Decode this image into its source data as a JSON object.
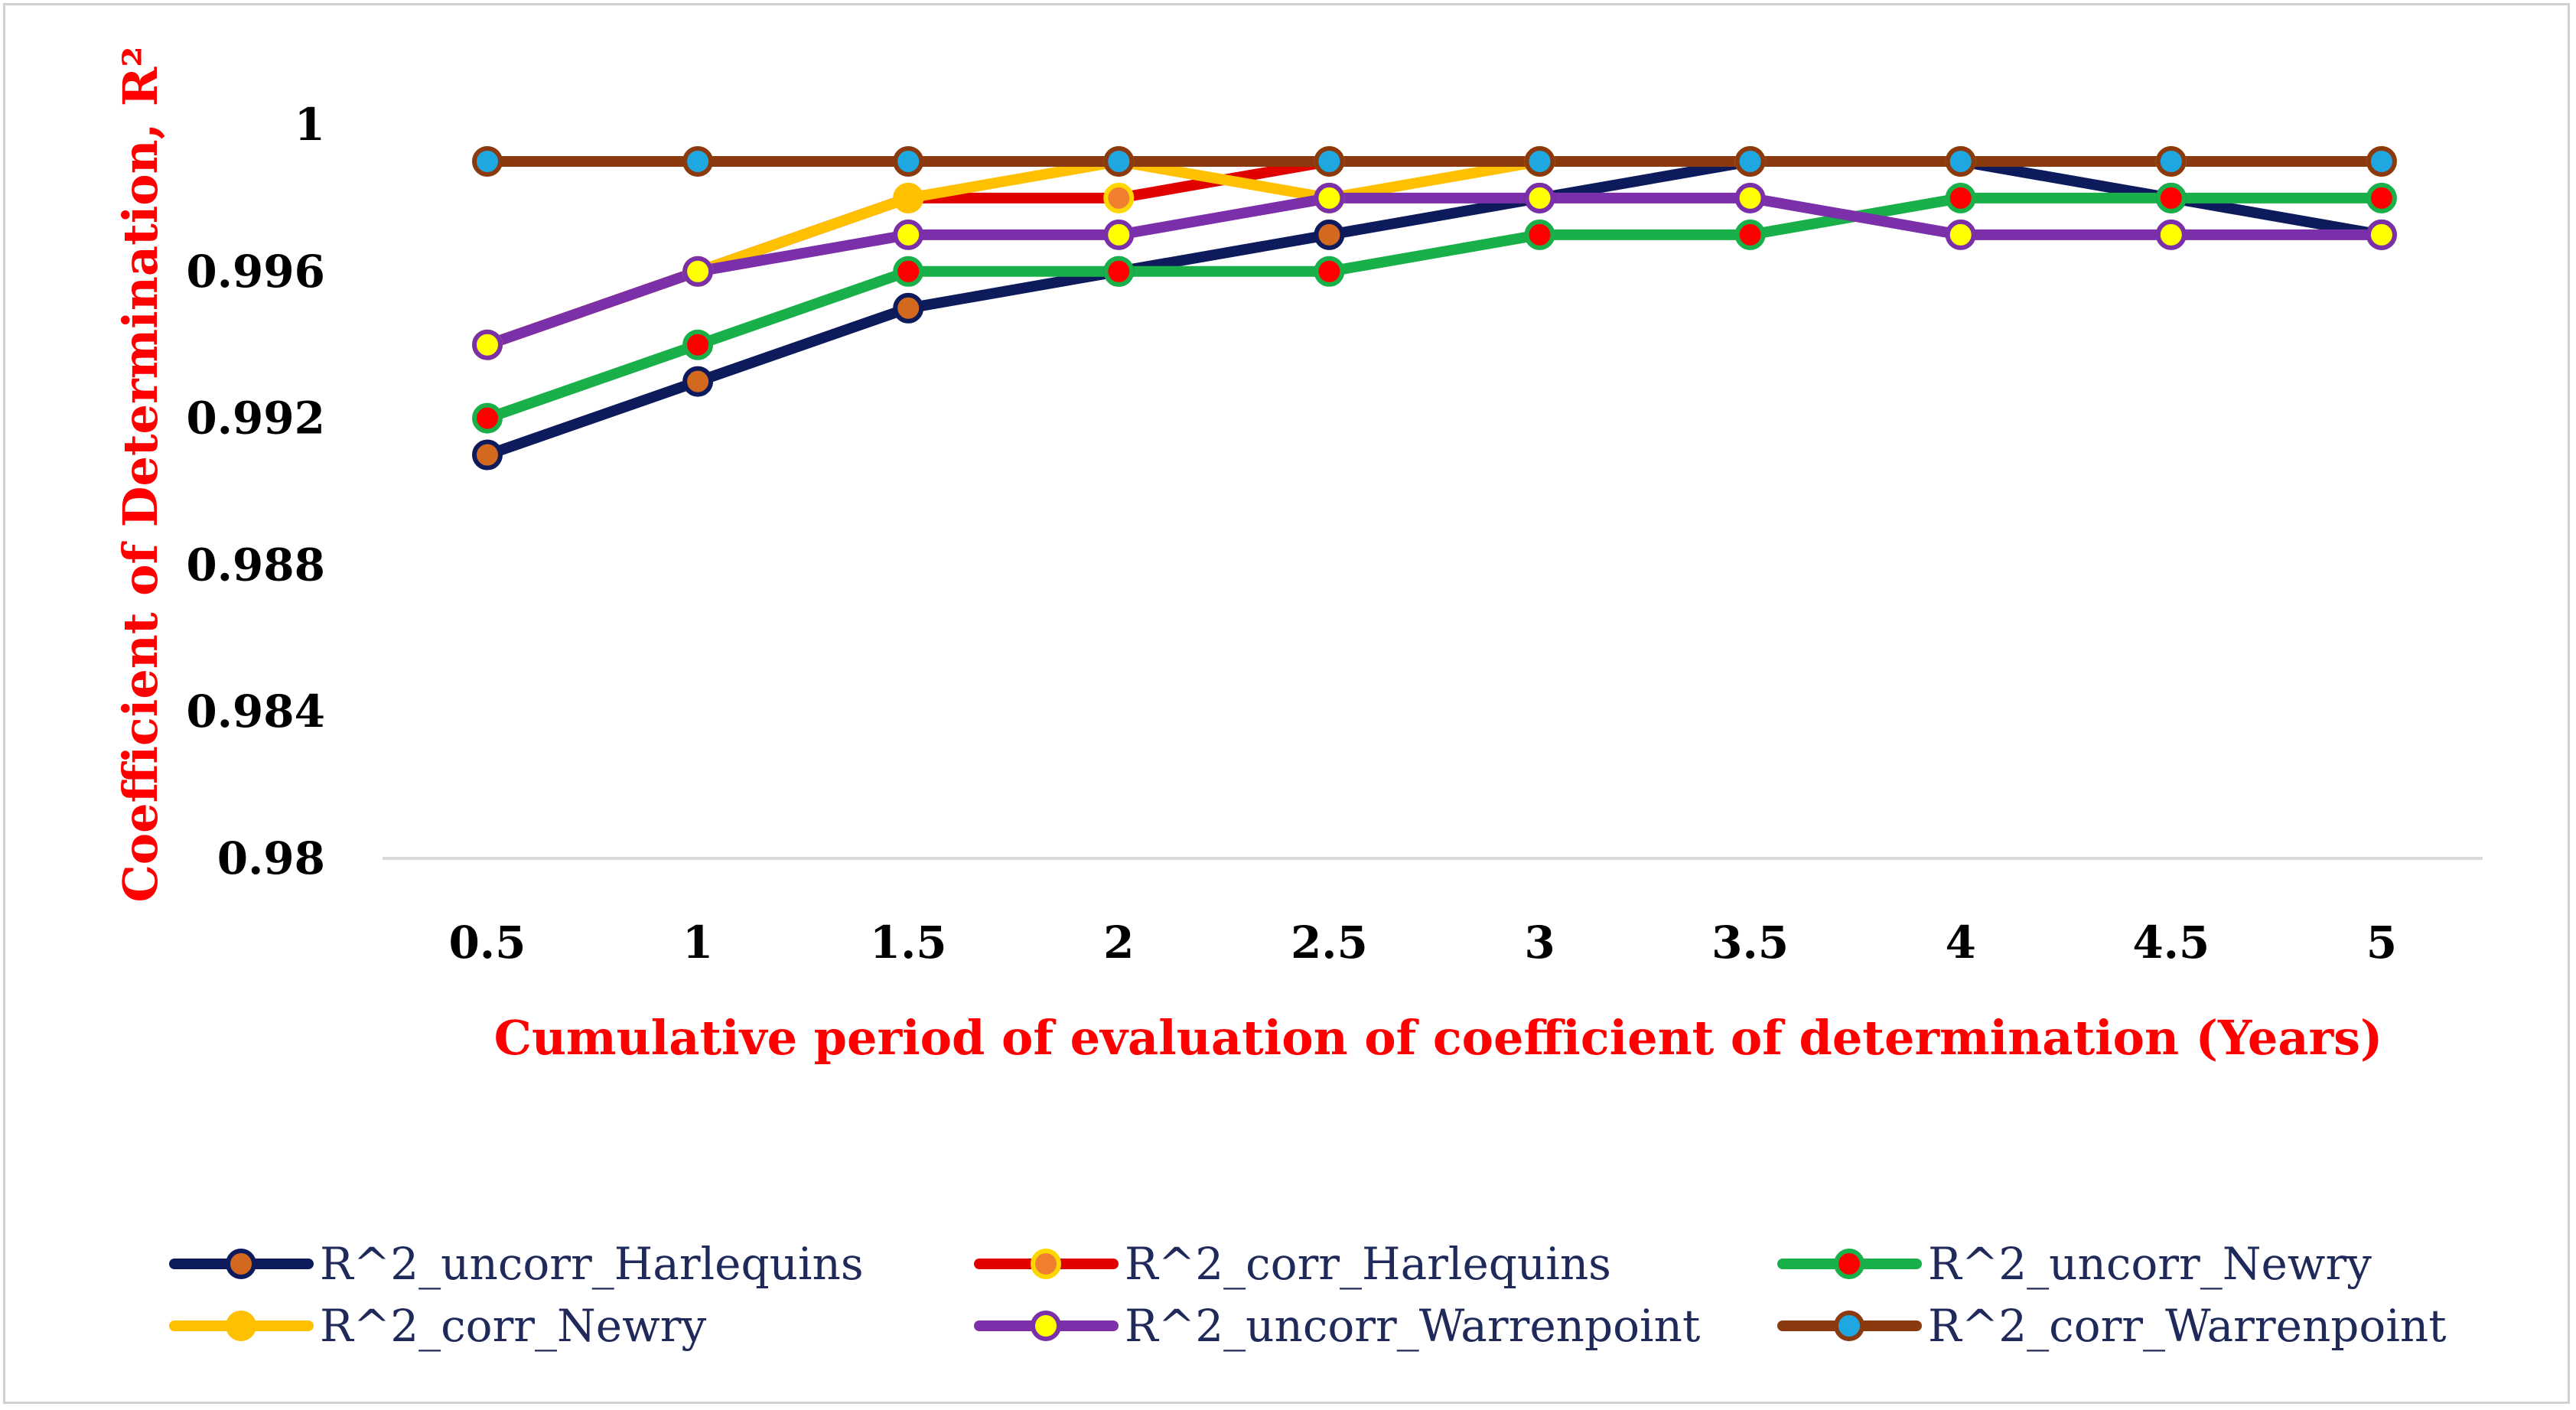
{
  "chart_data": {
    "type": "line",
    "title": "",
    "xlabel": "Cumulative period of evaluation of coefficient of determination (Years)",
    "ylabel": "Coefficient of Determination, R²",
    "ylim": [
      0.98,
      1.0
    ],
    "yticks": [
      "0.98",
      "0.984",
      "0.988",
      "0.992",
      "0.996",
      "1"
    ],
    "ytick_values": [
      0.98,
      0.984,
      0.988,
      0.992,
      0.996,
      1.0
    ],
    "categories": [
      "0.5",
      "1",
      "1.5",
      "2",
      "2.5",
      "3",
      "3.5",
      "4",
      "4.5",
      "5"
    ],
    "grid": false,
    "legend_position": "bottom",
    "axis_title_color": "#ff0000",
    "legend_text_color": "#1f2a5a",
    "series": [
      {
        "name": "R^2_uncorr_Harlequins",
        "line_color": "#0d1a5c",
        "marker_fill": "#d2691e",
        "marker_edge": "#0d1a5c",
        "values": [
          0.991,
          0.993,
          0.995,
          0.996,
          0.997,
          0.998,
          0.999,
          0.999,
          0.998,
          0.997
        ]
      },
      {
        "name": "R^2_corr_Harlequins",
        "line_color": "#e00000",
        "marker_fill": "#f08030",
        "marker_edge": "#ffd700",
        "values": [
          0.994,
          0.996,
          0.998,
          0.998,
          0.999,
          0.999,
          0.999,
          0.999,
          0.999,
          0.999
        ]
      },
      {
        "name": "R^2_uncorr_Newry",
        "line_color": "#19b04a",
        "marker_fill": "#ff0000",
        "marker_edge": "#19b04a",
        "values": [
          0.992,
          0.994,
          0.996,
          0.996,
          0.996,
          0.997,
          0.997,
          0.998,
          0.998,
          0.998
        ]
      },
      {
        "name": "R^2_corr_Newry",
        "line_color": "#ffc000",
        "marker_fill": "#ffc000",
        "marker_edge": "#ffc000",
        "values": [
          0.994,
          0.996,
          0.998,
          0.999,
          0.998,
          0.999,
          0.999,
          0.999,
          0.999,
          0.999
        ]
      },
      {
        "name": "R^2_uncorr_Warrenpoint",
        "line_color": "#7b2fa8",
        "marker_fill": "#ffff00",
        "marker_edge": "#7b2fa8",
        "values": [
          0.994,
          0.996,
          0.997,
          0.997,
          0.998,
          0.998,
          0.998,
          0.997,
          0.997,
          0.997
        ]
      },
      {
        "name": "R^2_corr_Warrenpoint",
        "line_color": "#8b3a0f",
        "marker_fill": "#1ea7e1",
        "marker_edge": "#8b3a0f",
        "values": [
          0.999,
          0.999,
          0.999,
          0.999,
          0.999,
          0.999,
          0.999,
          0.999,
          0.999,
          0.999
        ]
      }
    ]
  }
}
